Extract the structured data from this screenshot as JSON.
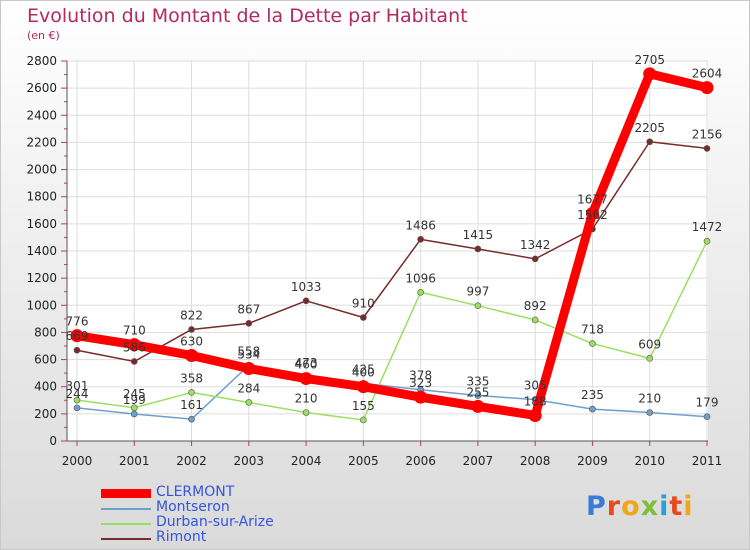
{
  "header": {
    "title": "Evolution du Montant de la Dette par Habitant",
    "subtitle": "(en €)"
  },
  "logo": {
    "text": "Proxiti",
    "letter_colors": [
      "#3a7bd5",
      "#e84a1b",
      "#f2a516",
      "#7bbf3c",
      "#2a9fd6",
      "#e84a1b",
      "#f2a516"
    ]
  },
  "chart_data": {
    "type": "line",
    "title": "Evolution du Montant de la Dette par Habitant",
    "subtitle": "(en €)",
    "x": [
      "2000",
      "2001",
      "2002",
      "2003",
      "2004",
      "2005",
      "2006",
      "2007",
      "2008",
      "2009",
      "2010",
      "2011"
    ],
    "ylim": [
      0,
      2800
    ],
    "yticks": [
      0,
      200,
      400,
      600,
      800,
      1000,
      1200,
      1400,
      1600,
      1800,
      2000,
      2200,
      2400,
      2600,
      2800
    ],
    "grid": true,
    "legend_position": "bottom-left",
    "series": [
      {
        "name": "CLERMONT",
        "color": "#ff0000",
        "text_color": "#3355dd",
        "emphasis": true,
        "values": [
          776,
          710,
          630,
          534,
          460,
          400,
          323,
          255,
          188,
          1677,
          2705,
          2604
        ],
        "labels": [
          "776",
          "710",
          "630",
          "534",
          "460",
          "400",
          "323",
          "255",
          "188",
          "1677",
          "2705",
          "2604"
        ]
      },
      {
        "name": "Montseron",
        "color": "#6fa0cc",
        "text_color": "#3355dd",
        "values": [
          244,
          199,
          161,
          558,
          473,
          425,
          378,
          335,
          305,
          235,
          210,
          179
        ],
        "labels": [
          "244",
          "199",
          "161",
          "558",
          "473",
          "425",
          "378",
          "335",
          "305",
          "235",
          "210",
          "179"
        ]
      },
      {
        "name": "Durban-sur-Arize",
        "color": "#99e060",
        "text_color": "#3355dd",
        "values": [
          301,
          245,
          358,
          284,
          210,
          155,
          1096,
          997,
          892,
          718,
          609,
          1472
        ],
        "labels": [
          "301",
          "245",
          "358",
          "284",
          "210",
          "155",
          "1096",
          "997",
          "892",
          "718",
          "609",
          "1472"
        ]
      },
      {
        "name": "Rimont",
        "color": "#7a2a2a",
        "text_color": "#3355dd",
        "values": [
          669,
          586,
          822,
          867,
          1033,
          910,
          1486,
          1415,
          1342,
          1562,
          2205,
          2156
        ],
        "labels": [
          "669",
          "586",
          "822",
          "867",
          "1033",
          "910",
          "1486",
          "1415",
          "1342",
          "1562",
          "2205",
          "2156"
        ]
      }
    ]
  }
}
